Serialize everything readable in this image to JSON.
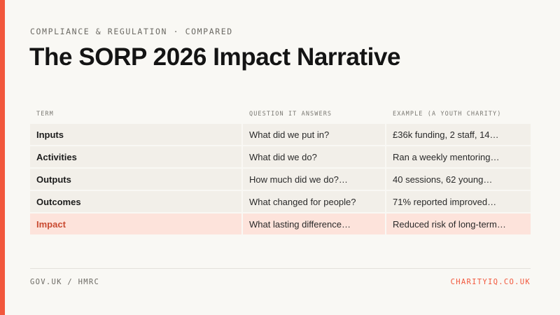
{
  "eyebrow": "COMPLIANCE & REGULATION · COMPARED",
  "title": "The SORP 2026 Impact Narrative",
  "table": {
    "headers": [
      "TERM",
      "QUESTION IT ANSWERS",
      "EXAMPLE (A YOUTH CHARITY)"
    ],
    "rows": [
      {
        "term": "Inputs",
        "question": "What did we put in?",
        "example": "£36k funding, 2 staff, 14…"
      },
      {
        "term": "Activities",
        "question": "What did we do?",
        "example": "Ran a weekly mentoring…"
      },
      {
        "term": "Outputs",
        "question": "How much did we do?…",
        "example": "40 sessions, 62 young…"
      },
      {
        "term": "Outcomes",
        "question": "What changed for people?",
        "example": "71% reported improved…"
      },
      {
        "term": "Impact",
        "question": "What lasting difference…",
        "example": "Reduced risk of long-term…"
      }
    ]
  },
  "footer": {
    "source": "GOV.UK / HMRC",
    "site": "CHARITYIQ.CO.UK"
  },
  "colors": {
    "accent": "#f2573c",
    "highlight_row": "#fde3db",
    "highlight_text": "#c94a31"
  }
}
